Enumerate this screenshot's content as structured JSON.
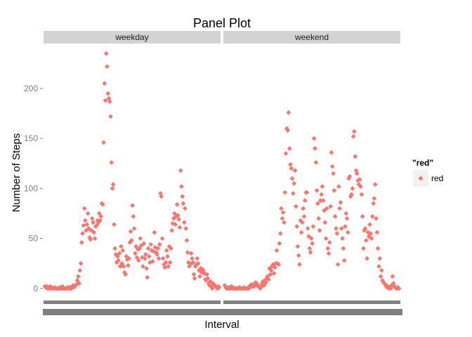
{
  "chart_data": {
    "type": "scatter",
    "title": "Panel Plot",
    "xlabel": "Interval",
    "ylabel": "Number of Steps",
    "ylim": [
      -10,
      245
    ],
    "yticks": [
      0,
      50,
      100,
      150,
      200
    ],
    "grid": false,
    "point_color": "#F8766D",
    "strip_color": "#D3D3D3",
    "legend": {
      "title": "\"red\"",
      "entries": [
        "red"
      ],
      "placement": "right"
    },
    "facets": [
      {
        "name": "weekday",
        "values": [
          2,
          1,
          2,
          0,
          1,
          0,
          2,
          0,
          1,
          0,
          0,
          1,
          0,
          0,
          0,
          0,
          0,
          1,
          0,
          0,
          2,
          0,
          0,
          0,
          0,
          0,
          1,
          0,
          1,
          0,
          0,
          2,
          3,
          1,
          2,
          3,
          4,
          8,
          12,
          5,
          18,
          25,
          46,
          55,
          63,
          80,
          68,
          58,
          64,
          75,
          60,
          51,
          49,
          58,
          70,
          66,
          56,
          50,
          62,
          63,
          68,
          66,
          75,
          68,
          72,
          85,
          84,
          146,
          205,
          188,
          235,
          222,
          195,
          190,
          187,
          172,
          126,
          100,
          104,
          64,
          40,
          34,
          26,
          32,
          28,
          35,
          22,
          42,
          25,
          38,
          22,
          16,
          14,
          32,
          29,
          23,
          30,
          46,
          57,
          48,
          83,
          72,
          60,
          35,
          42,
          31,
          39,
          28,
          40,
          50,
          43,
          31,
          22,
          45,
          30,
          34,
          20,
          11,
          40,
          32,
          26,
          44,
          38,
          27,
          37,
          56,
          41,
          36,
          34,
          40,
          30,
          44,
          95,
          92,
          50,
          30,
          24,
          21,
          26,
          38,
          32,
          22,
          42,
          26,
          40,
          58,
          65,
          70,
          75,
          64,
          72,
          84,
          73,
          69,
          61,
          118,
          102,
          92,
          85,
          66,
          80,
          60,
          48,
          36,
          26,
          22,
          24,
          35,
          30,
          26,
          14,
          10,
          22,
          24,
          30,
          25,
          18,
          12,
          20,
          16,
          19,
          18,
          15,
          9,
          8,
          14,
          10,
          5,
          3,
          7,
          2,
          0,
          5,
          4,
          3,
          2,
          1,
          0,
          2,
          1
        ]
      },
      {
        "name": "weekend",
        "values": [
          3,
          1,
          0,
          0,
          1,
          0,
          0,
          2,
          0,
          1,
          0,
          0,
          0,
          0,
          0,
          0,
          1,
          0,
          0,
          0,
          0,
          1,
          0,
          0,
          0,
          0,
          0,
          2,
          1,
          4,
          3,
          2,
          2,
          5,
          6,
          3,
          4,
          2,
          1,
          0,
          2,
          5,
          7,
          3,
          8,
          6,
          10,
          12,
          9,
          20,
          14,
          18,
          22,
          24,
          15,
          21,
          25,
          38,
          25,
          24,
          45,
          55,
          80,
          70,
          76,
          66,
          96,
          135,
          160,
          158,
          176,
          140,
          124,
          120,
          110,
          95,
          105,
          118,
          82,
          62,
          42,
          33,
          24,
          68,
          56,
          66,
          80,
          72,
          88,
          96,
          96,
          60,
          52,
          40,
          36,
          50,
          45,
          62,
          150,
          140,
          126,
          98,
          85,
          70,
          58,
          88,
          94,
          102,
          88,
          78,
          66,
          50,
          80,
          40,
          35,
          46,
          82,
          136,
          122,
          115,
          98,
          72,
          60,
          55,
          24,
          102,
          80,
          86,
          60,
          50,
          40,
          28,
          62,
          75,
          70,
          56,
          110,
          112,
          92,
          94,
          100,
          152,
          157,
          132,
          118,
          115,
          108,
          104,
          109,
          102,
          94,
          72,
          40,
          58,
          60,
          48,
          30,
          56,
          52,
          64,
          55,
          50,
          72,
          85,
          90,
          104,
          70,
          56,
          40,
          22,
          30,
          12,
          18,
          8,
          6,
          5,
          4,
          2,
          1,
          2,
          0,
          1,
          0,
          3,
          12,
          5,
          2,
          1,
          0,
          0,
          1,
          0
        ]
      }
    ]
  }
}
